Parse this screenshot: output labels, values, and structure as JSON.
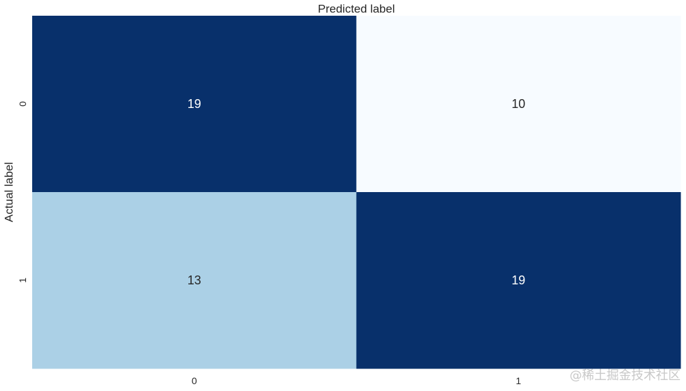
{
  "chart_data": {
    "type": "heatmap",
    "title": "",
    "xlabel": "Predicted label",
    "ylabel": "Actual label",
    "x_categories": [
      "0",
      "1"
    ],
    "y_categories": [
      "0",
      "1"
    ],
    "values": [
      [
        19,
        10
      ],
      [
        13,
        19
      ]
    ],
    "value_range": [
      10,
      19
    ],
    "colormap": "Blues",
    "colorbar": false,
    "grid": false,
    "xlabel_position": "top",
    "colors": {
      "low": "#f7fbff",
      "mid": "#abd0e6",
      "high": "#08306b",
      "text_light": "#ffffff",
      "text_dark": "#262626",
      "axis_text": "#262626"
    }
  },
  "watermark": "@稀土掘金技术社区"
}
